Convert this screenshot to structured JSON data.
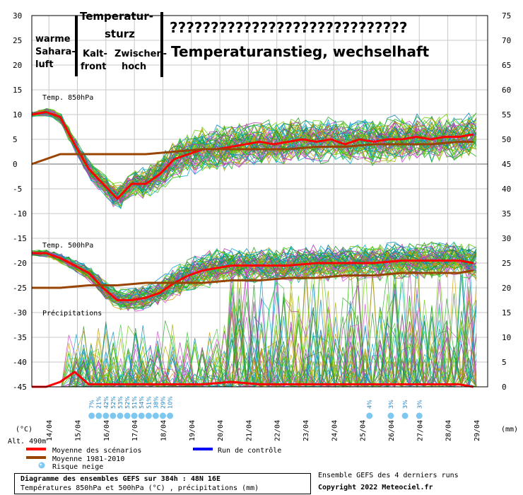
{
  "chart_data": {
    "type": "line",
    "title": "Diagramme des ensembles GEFS sur 384h : 48N 16E",
    "subtitle": "Températures 850hPa et 500hPa (°C) , précipitations (mm)",
    "left_axis_unit": "(°C)",
    "right_axis_unit": "(mm)",
    "altitude": "Alt. 490m",
    "left_ticks": [
      "30",
      "25",
      "20",
      "15",
      "10",
      "5",
      "0",
      "-5",
      "-10",
      "-15",
      "-20",
      "-25",
      "-30",
      "-35",
      "-40",
      "-45"
    ],
    "right_ticks": [
      "75",
      "70",
      "65",
      "60",
      "55",
      "50",
      "45",
      "40",
      "35",
      "30",
      "25",
      "20",
      "15",
      "10",
      "5",
      "0"
    ],
    "ylim": [
      -45,
      30
    ],
    "x_dates": [
      "14/04",
      "15/04",
      "16/04",
      "17/04",
      "18/04",
      "19/04",
      "20/04",
      "21/04",
      "22/04",
      "23/04",
      "24/04",
      "25/04",
      "26/04",
      "27/04",
      "28/04",
      "29/04"
    ],
    "panel_labels": {
      "t850": "Temp. 850hPa",
      "t500": "Temp. 500hPa",
      "precip": "Précipitations"
    },
    "series": [
      {
        "name": "Moyenne des scénarios",
        "color": "#ff0000",
        "panel": "t850",
        "x": [
          0,
          0.5,
          1,
          1.5,
          2,
          2.5,
          3,
          3.5,
          4,
          4.5,
          5,
          5.5,
          6,
          6.5,
          7,
          7.5,
          8,
          8.5,
          9,
          9.5,
          10,
          10.5,
          11,
          11.5,
          12,
          12.5,
          13,
          13.5,
          14,
          14.5,
          15,
          15.5
        ],
        "values": [
          10,
          10.5,
          9.5,
          4,
          -1,
          -4,
          -7,
          -4,
          -4,
          -2,
          1,
          2,
          3,
          3,
          3.5,
          4,
          4.5,
          4,
          4.5,
          5,
          4.5,
          5,
          4,
          5,
          4.5,
          5,
          5,
          5.5,
          5,
          5.5,
          5.5,
          6
        ]
      },
      {
        "name": "Moyenne 1981-2010",
        "color": "#994400",
        "panel": "t850",
        "x": [
          0,
          1,
          2,
          3,
          4,
          5,
          6,
          7,
          8,
          9,
          10,
          11,
          12,
          13,
          14,
          15,
          15.5
        ],
        "values": [
          0,
          2,
          2,
          2,
          2,
          2.5,
          3,
          3,
          3,
          3,
          3.5,
          3.5,
          4,
          4,
          4,
          4.5,
          4.5
        ]
      },
      {
        "name": "Moyenne des scénarios",
        "color": "#ff0000",
        "panel": "t500",
        "x": [
          0,
          0.5,
          1,
          1.5,
          2,
          2.5,
          3,
          3.5,
          4,
          4.5,
          5,
          5.5,
          6,
          6.5,
          7,
          8,
          9,
          10,
          11,
          12,
          13,
          14,
          15,
          15.5
        ],
        "values": [
          -18,
          -18,
          -19,
          -20.5,
          -22,
          -25,
          -27.5,
          -27.5,
          -27,
          -26,
          -24,
          -22.5,
          -21.5,
          -21,
          -20.5,
          -20.5,
          -20.5,
          -20,
          -20,
          -20,
          -19.5,
          -19.5,
          -19.5,
          -20
        ]
      },
      {
        "name": "Moyenne 1981-2010",
        "color": "#994400",
        "panel": "t500",
        "x": [
          0,
          1,
          2,
          3,
          4,
          5,
          6,
          7,
          8,
          9,
          10,
          11,
          12,
          13,
          14,
          15,
          15.5
        ],
        "values": [
          -25,
          -25,
          -24.5,
          -24.5,
          -24,
          -24,
          -24,
          -23.5,
          -23.5,
          -23,
          -23,
          -22.5,
          -22.5,
          -22,
          -22,
          -22,
          -21.5
        ]
      },
      {
        "name": "Moyenne des scénarios",
        "color": "#ff0000",
        "panel": "precip",
        "x": [
          0,
          0.5,
          1,
          1.5,
          2,
          2.5,
          3,
          4,
          5,
          6,
          7,
          8,
          9,
          10,
          11,
          12,
          13,
          14,
          15,
          15.5
        ],
        "values": [
          0,
          0,
          1,
          3,
          0.5,
          0.5,
          0.5,
          0.5,
          0.5,
          0.5,
          1,
          0.5,
          0.5,
          0.5,
          0.5,
          0.5,
          0.5,
          0.5,
          0.5,
          0
        ]
      }
    ],
    "snow_risk": [
      {
        "x": 2.1,
        "label": "7%"
      },
      {
        "x": 2.35,
        "label": "21%"
      },
      {
        "x": 2.6,
        "label": "42%"
      },
      {
        "x": 2.85,
        "label": "52%"
      },
      {
        "x": 3.1,
        "label": "53%"
      },
      {
        "x": 3.35,
        "label": "52%"
      },
      {
        "x": 3.6,
        "label": "51%"
      },
      {
        "x": 3.85,
        "label": "54%"
      },
      {
        "x": 4.1,
        "label": "51%"
      },
      {
        "x": 4.35,
        "label": "38%"
      },
      {
        "x": 4.6,
        "label": "29%"
      },
      {
        "x": 4.85,
        "label": "10%"
      },
      {
        "x": 11.85,
        "label": "4%"
      },
      {
        "x": 12.6,
        "label": "3%"
      },
      {
        "x": 13.1,
        "label": "3%"
      },
      {
        "x": 13.6,
        "label": "3%"
      }
    ],
    "legend": {
      "mean": "Moyenne des scénarios",
      "climate": "Moyenne 1981-2010",
      "snow": "Risque neige",
      "control": "Run de contrôle"
    },
    "footer": {
      "line1": "Diagramme des ensembles GEFS sur 384h : 48N 16E",
      "line2": "Températures 850hPa et 500hPa (°C) , précipitations (mm)",
      "runs": "Ensemble GEFS des 4 derniers runs",
      "copyright": "Copyright 2022 Meteociel.fr"
    },
    "annotations": {
      "a1": [
        "warme",
        "Sahara-",
        "luft"
      ],
      "a2": "Temperatur-",
      "a2b": "sturz",
      "a3": [
        "Kalt-",
        "front"
      ],
      "a4": [
        "Zwischen-",
        "hoch"
      ],
      "a5": "?????????????????????????????",
      "a6": "Temperaturanstieg, wechselhaft"
    }
  }
}
